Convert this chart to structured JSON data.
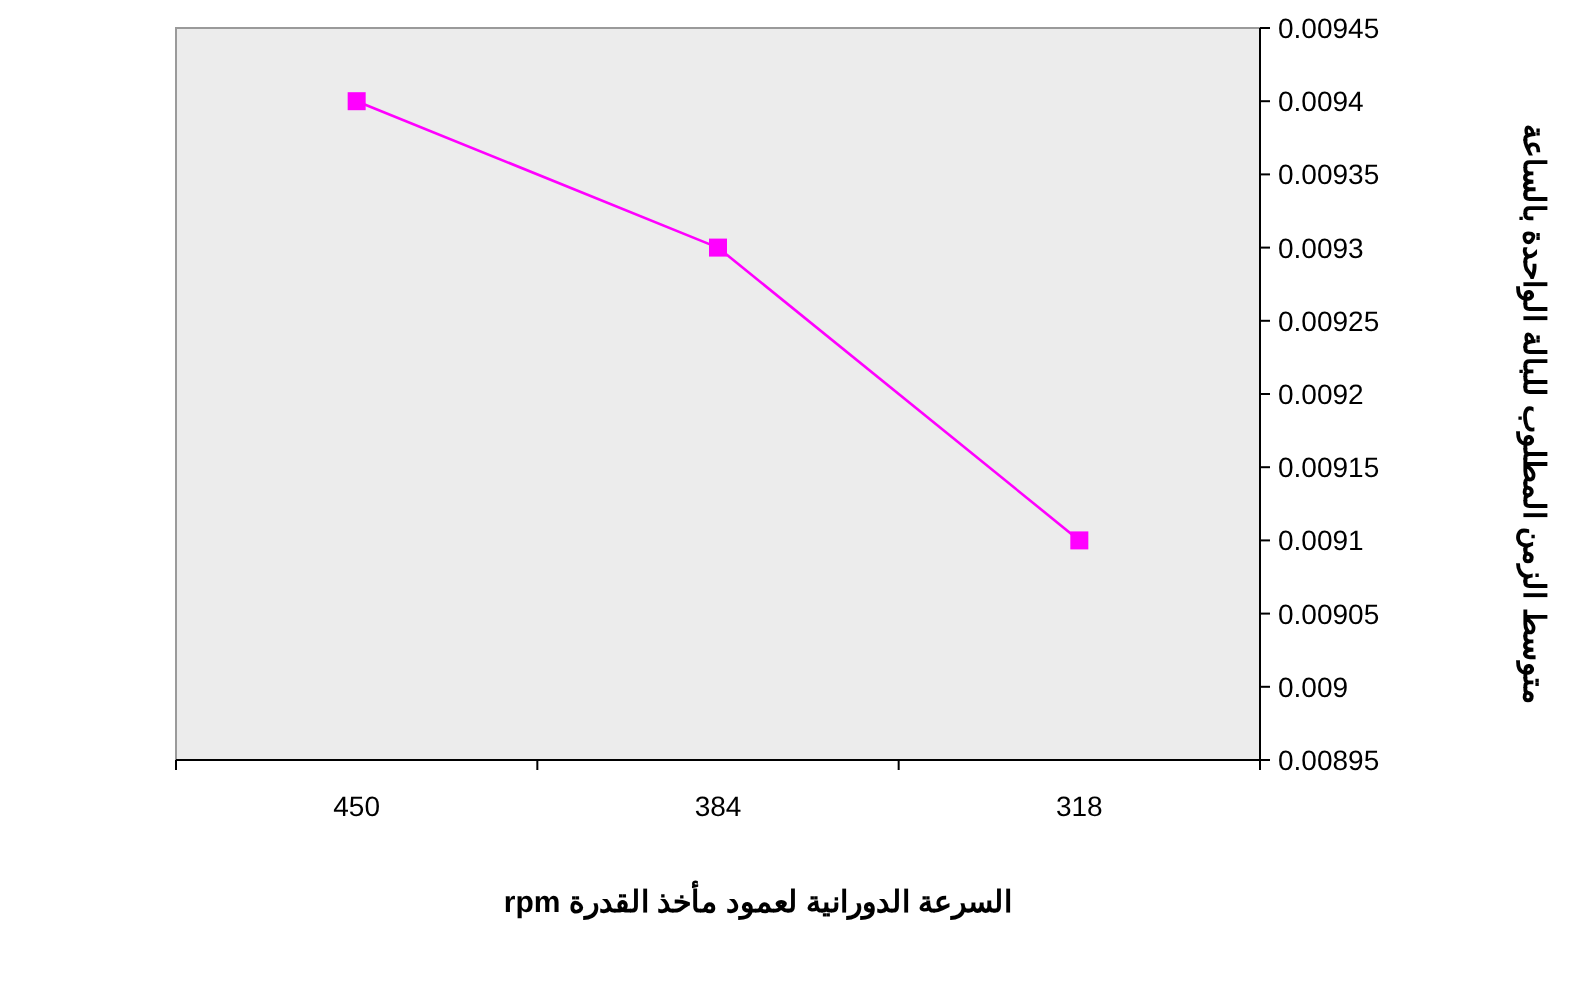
{
  "chart_data": {
    "type": "line",
    "xlabel": "السرعة الدورانية لعمود مأخذ القدرة rpm",
    "ylabel": "متوسط الزمن المطلوب للبالة الواحدة بالساعة",
    "categories": [
      "450",
      "384",
      "318"
    ],
    "series": [
      {
        "color": "#ff00ff",
        "values": [
          0.0094,
          0.0093,
          0.0091
        ]
      }
    ],
    "ylim": [
      0.00895,
      0.00945
    ],
    "yticks": [
      0.00895,
      0.009,
      0.00905,
      0.0091,
      0.00915,
      0.0092,
      0.00925,
      0.0093,
      0.00935,
      0.0094,
      0.00945
    ],
    "marker": "square",
    "grid": false
  }
}
